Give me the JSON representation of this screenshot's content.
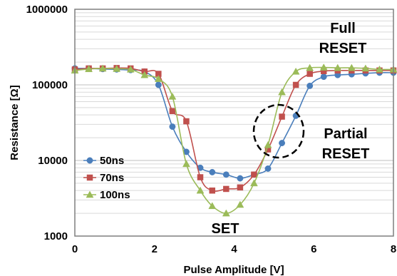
{
  "chart_data": {
    "type": "line",
    "title": "",
    "xlabel": "Pulse Amplitude [V]",
    "ylabel": "Resistance [Ω]",
    "xlim": [
      0,
      8
    ],
    "ylim": [
      1000,
      1000000
    ],
    "yscale": "log",
    "x_ticks": [
      "0",
      "2",
      "4",
      "6",
      "8"
    ],
    "y_ticks": [
      "1000",
      "10000",
      "100000",
      "1000000"
    ],
    "grid": true,
    "legend_position": "bottom-left",
    "series": [
      {
        "name": "50ns",
        "color": "#4a7ebb",
        "marker": "circle",
        "x": [
          0,
          0.35,
          0.7,
          1.05,
          1.4,
          1.75,
          2.1,
          2.45,
          2.8,
          3.15,
          3.45,
          3.8,
          4.15,
          4.5,
          4.85,
          5.2,
          5.55,
          5.9,
          6.25,
          6.6,
          6.95,
          7.3,
          7.65,
          8.0
        ],
        "values": [
          165000,
          165000,
          162000,
          160000,
          157000,
          150000,
          100000,
          28000,
          13000,
          8000,
          7000,
          6500,
          5800,
          6500,
          7800,
          17000,
          39000,
          97000,
          128000,
          135000,
          138000,
          142000,
          145000,
          145000
        ]
      },
      {
        "name": "70ns",
        "color": "#c0504d",
        "marker": "square",
        "x": [
          0,
          0.35,
          0.7,
          1.05,
          1.4,
          1.75,
          2.1,
          2.45,
          2.8,
          3.15,
          3.45,
          3.8,
          4.15,
          4.5,
          4.85,
          5.2,
          5.55,
          5.9,
          6.25,
          6.6,
          6.95,
          7.3,
          7.65,
          8.0
        ],
        "values": [
          160000,
          165000,
          165000,
          167000,
          165000,
          150000,
          140000,
          45000,
          33000,
          6000,
          4000,
          4200,
          4400,
          6500,
          14000,
          38000,
          100000,
          140000,
          152000,
          155000,
          155000,
          155000,
          155000,
          155000
        ]
      },
      {
        "name": "100ns",
        "color": "#9bbb59",
        "marker": "triangle",
        "x": [
          0,
          0.35,
          0.7,
          1.05,
          1.4,
          1.75,
          2.1,
          2.45,
          2.8,
          3.15,
          3.45,
          3.8,
          4.15,
          4.5,
          4.85,
          5.2,
          5.55,
          5.9,
          6.25,
          6.6,
          6.95,
          7.3,
          7.65,
          8.0
        ],
        "values": [
          155000,
          162000,
          165000,
          163000,
          160000,
          135000,
          120000,
          70000,
          9000,
          4000,
          2500,
          2000,
          2600,
          5000,
          16000,
          80000,
          150000,
          168000,
          170000,
          168000,
          168000,
          165000,
          160000,
          160000
        ]
      }
    ],
    "annotations": [
      {
        "id": "full-reset",
        "lines": [
          "Full",
          "RESET"
        ]
      },
      {
        "id": "partial-reset",
        "lines": [
          "Partial",
          "RESET"
        ]
      },
      {
        "id": "set",
        "lines": [
          "SET"
        ]
      }
    ]
  }
}
